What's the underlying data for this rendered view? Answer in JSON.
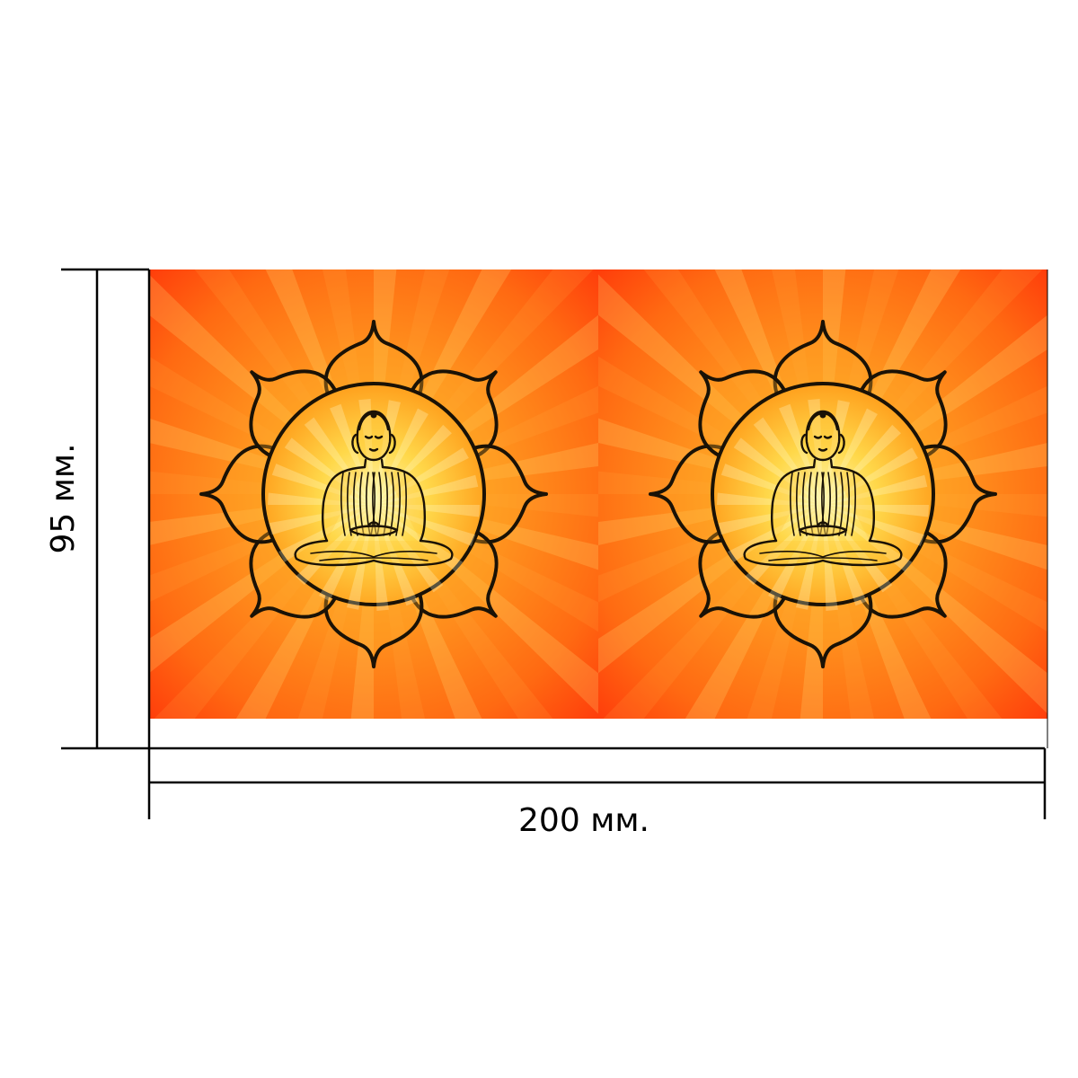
{
  "dimensions": {
    "height_label": "95 мм.",
    "width_label": "200 мм."
  },
  "print_panels": [
    {
      "figure": "buddha-in-lotus"
    },
    {
      "figure": "buddha-in-lotus"
    }
  ],
  "colors": {
    "background_outer": "#ff4a10",
    "background_inner": "#ff9a20",
    "glow_center": "#fff3a0",
    "ray_light": "#ffe27a",
    "outline": "#1a1206",
    "dimension_line": "#000000"
  }
}
